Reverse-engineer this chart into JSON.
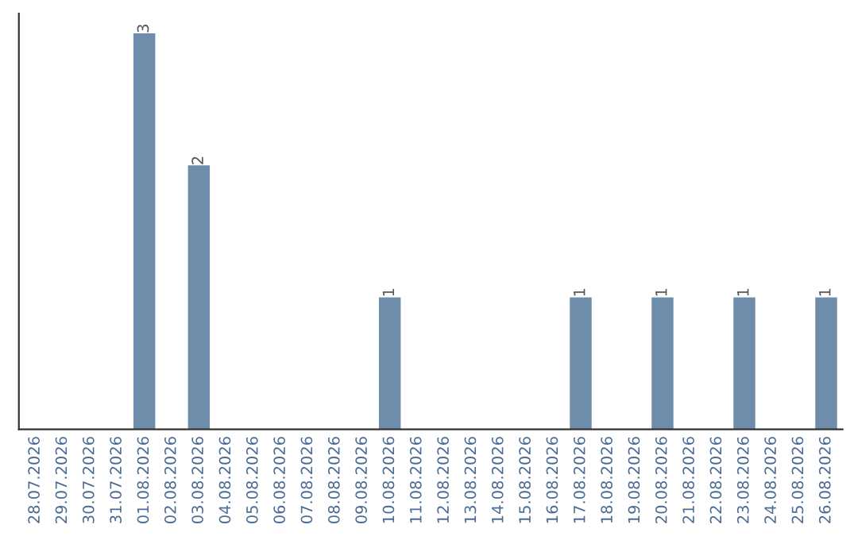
{
  "chart_data": {
    "type": "bar",
    "categories": [
      "28.07.2026",
      "29.07.2026",
      "30.07.2026",
      "31.07.2026",
      "01.08.2026",
      "02.08.2026",
      "03.08.2026",
      "04.08.2026",
      "05.08.2026",
      "06.08.2026",
      "07.08.2026",
      "08.08.2026",
      "09.08.2026",
      "10.08.2026",
      "11.08.2026",
      "12.08.2026",
      "13.08.2026",
      "14.08.2026",
      "15.08.2026",
      "16.08.2026",
      "17.08.2026",
      "18.08.2026",
      "19.08.2026",
      "20.08.2026",
      "21.08.2026",
      "22.08.2026",
      "23.08.2026",
      "24.08.2026",
      "25.08.2026",
      "26.08.2026"
    ],
    "values": [
      0,
      0,
      0,
      0,
      3,
      0,
      2,
      0,
      0,
      0,
      0,
      0,
      0,
      1,
      0,
      0,
      0,
      0,
      0,
      0,
      1,
      0,
      0,
      1,
      0,
      0,
      1,
      0,
      0,
      1
    ],
    "value_labels": [
      null,
      null,
      null,
      null,
      "3",
      null,
      "2",
      null,
      null,
      null,
      null,
      null,
      null,
      "1",
      null,
      null,
      null,
      null,
      null,
      null,
      "1",
      null,
      null,
      "1",
      null,
      null,
      "1",
      null,
      null,
      "1"
    ],
    "color": "#6d8dab",
    "tick_labels": "x",
    "grid": false,
    "legend": false
  }
}
